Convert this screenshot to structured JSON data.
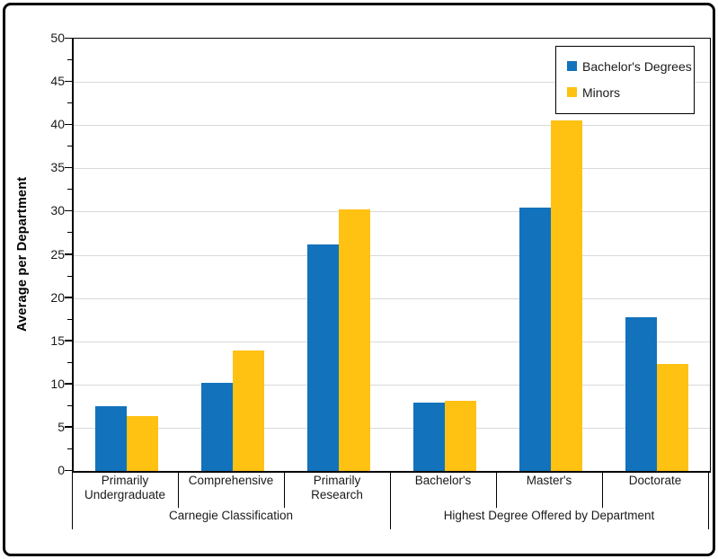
{
  "chart_data": {
    "type": "bar",
    "title": "",
    "xlabel": "",
    "ylabel": "Average per Department",
    "ylim": [
      0,
      50
    ],
    "ytick_step": 5,
    "ytick_minor_step": 2.5,
    "grid": true,
    "legend_position": "top-right",
    "categories": [
      "Primarily\nUndergraduate",
      "Comprehensive",
      "Primarily\nResearch",
      "Bachelor's",
      "Master's",
      "Doctorate"
    ],
    "category_groups": [
      {
        "label": "Carnegie Classification",
        "span": [
          0,
          3
        ]
      },
      {
        "label": "Highest Degree Offered by Department",
        "span": [
          3,
          6
        ]
      }
    ],
    "series": [
      {
        "name": "Bachelor's Degrees",
        "color": "#1272BC",
        "values": [
          7.5,
          10.2,
          26.2,
          7.9,
          30.5,
          17.8
        ]
      },
      {
        "name": "Minors",
        "color": "#FFC112",
        "values": [
          6.3,
          13.9,
          30.2,
          8.1,
          40.5,
          12.4
        ]
      }
    ]
  },
  "colors": {
    "gridline": "#d9d9d9",
    "axis": "#000000",
    "text": "#1a1a1a",
    "background": "#ffffff"
  }
}
